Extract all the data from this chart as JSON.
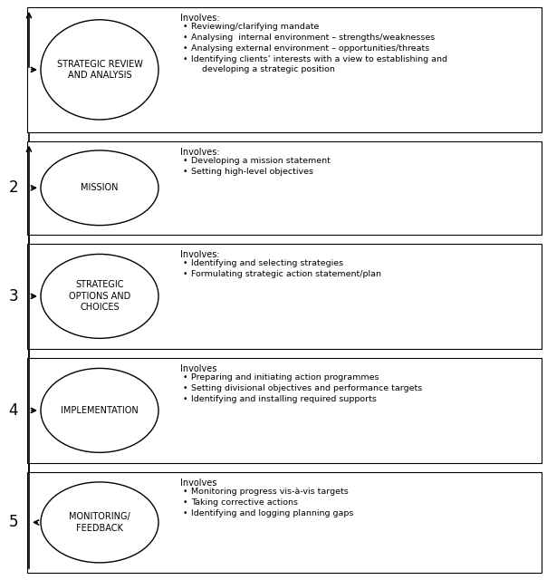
{
  "rows": [
    {
      "number": "",
      "label": "STRATEGIC REVIEW\nAND ANALYSIS",
      "involves_title": "Involves:",
      "bullets": [
        "Reviewing/clarifying mandate",
        "Analysing  internal environment – strengths/weaknesses",
        "Analysing external environment – opportunities/threats",
        "Identifying clients’ interests with a view to establishing and\n    developing a strategic position"
      ],
      "arrow_dir": "right"
    },
    {
      "number": "2",
      "label": "MISSION",
      "involves_title": "Involves:",
      "bullets": [
        "Developing a mission statement",
        "Setting high-level objectives"
      ],
      "arrow_dir": "right"
    },
    {
      "number": "3",
      "label": "STRATEGIC\nOPTIONS AND\nCHOICES",
      "involves_title": "Involves:",
      "bullets": [
        "Identifying and selecting strategies",
        "Formulating strategic action statement/plan"
      ],
      "arrow_dir": "right"
    },
    {
      "number": "4",
      "label": "IMPLEMENTATION",
      "involves_title": "Involves",
      "bullets": [
        "Preparing and initiating action programmes",
        "Setting divisional objectives and performance targets",
        "Identifying and installing required supports"
      ],
      "arrow_dir": "right"
    },
    {
      "number": "5",
      "label": "MONITORING/\nFEEDBACK",
      "involves_title": "Involves",
      "bullets": [
        "Monitoring progress vis-à-vis targets",
        "Taking corrective actions",
        "Identifying and logging planning gaps"
      ],
      "arrow_dir": "left"
    }
  ],
  "bg_color": "#ffffff",
  "box_edge_color": "#000000",
  "text_color": "#000000",
  "font_size_label": 7.0,
  "font_size_bullets": 6.8,
  "font_size_number": 12,
  "font_size_involves": 7.0
}
